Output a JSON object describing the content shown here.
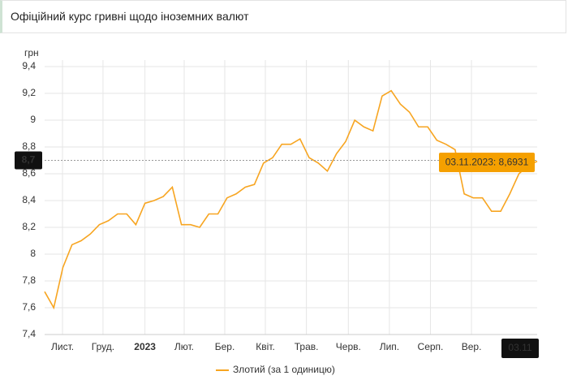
{
  "chart_data": {
    "type": "line",
    "title": "Офіційний курс гривні щодо іноземних валют",
    "y_label": "грн",
    "series": [
      {
        "name": "Злотий (за 1 одиницю)",
        "color": "#f7a521",
        "values": [
          7.72,
          7.6,
          7.9,
          8.07,
          8.1,
          8.15,
          8.22,
          8.25,
          8.3,
          8.3,
          8.22,
          8.38,
          8.4,
          8.43,
          8.5,
          8.22,
          8.22,
          8.2,
          8.3,
          8.3,
          8.42,
          8.45,
          8.5,
          8.52,
          8.68,
          8.72,
          8.82,
          8.82,
          8.86,
          8.72,
          8.68,
          8.62,
          8.75,
          8.84,
          9.0,
          8.95,
          8.92,
          9.18,
          9.22,
          9.12,
          9.06,
          8.95,
          8.95,
          8.85,
          8.82,
          8.78,
          8.45,
          8.42,
          8.42,
          8.32,
          8.32,
          8.45,
          8.6,
          8.66,
          8.6931
        ]
      }
    ],
    "xlim": [
      0,
      54
    ],
    "xticks": [
      {
        "value": 1.96,
        "label": "Лист."
      },
      {
        "value": 6.4,
        "label": "Груд."
      },
      {
        "value": 11.0,
        "label": "2023",
        "bold": true
      },
      {
        "value": 15.3,
        "label": "Лют."
      },
      {
        "value": 19.75,
        "label": "Бер."
      },
      {
        "value": 24.2,
        "label": "Квіт."
      },
      {
        "value": 28.7,
        "label": "Трав."
      },
      {
        "value": 33.3,
        "label": "Черв."
      },
      {
        "value": 37.8,
        "label": "Лип."
      },
      {
        "value": 42.3,
        "label": "Серп."
      },
      {
        "value": 46.8,
        "label": "Вер."
      }
    ],
    "ylim": [
      7.4,
      9.4
    ],
    "yticks": [
      {
        "value": 7.4,
        "label": "7,4"
      },
      {
        "value": 7.6,
        "label": "7,6"
      },
      {
        "value": 7.8,
        "label": "7,8"
      },
      8,
      {
        "value": 8.2,
        "label": "8,2"
      },
      {
        "value": 8.4,
        "label": "8,4"
      },
      {
        "value": 8.6,
        "label": "8,6"
      },
      {
        "value": 8.8,
        "label": "8,8"
      },
      9,
      {
        "value": 9.2,
        "label": "9,2"
      },
      {
        "value": 9.4,
        "label": "9,4"
      }
    ],
    "grid": true,
    "crosshair": {
      "y": {
        "value": 8.7,
        "label": "8,7"
      },
      "x": {
        "value": 54,
        "label": "03.11"
      }
    },
    "tooltip": "03.11.2023: 8,6931",
    "legend": "bottom"
  }
}
